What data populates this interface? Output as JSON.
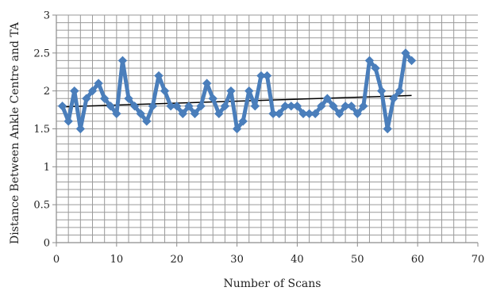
{
  "colors": {
    "series": "#4a7ebb",
    "trendline": "#000000",
    "grid": "#9a9a9a",
    "axis": "#8c8c8c"
  },
  "chart_data": {
    "type": "line",
    "title": "",
    "xlabel": "Number of Scans",
    "ylabel": "Distance Between Ankle Centre and TA",
    "xlim": [
      0,
      70
    ],
    "ylim": [
      0,
      3
    ],
    "x_major_ticks": [
      0,
      10,
      20,
      30,
      40,
      50,
      60,
      70
    ],
    "x_tick_labels": [
      "0",
      "10",
      "20",
      "30",
      "40",
      "50",
      "60",
      "70"
    ],
    "y_major_ticks": [
      0,
      0.5,
      1,
      1.5,
      2,
      2.5,
      3
    ],
    "y_tick_labels": [
      "0",
      "0.5",
      "1",
      "1.5",
      "2",
      "2.5",
      "3"
    ],
    "grid": true,
    "legend": "none",
    "series": [
      {
        "marker": "diamond",
        "x": [
          1,
          2,
          3,
          4,
          5,
          6,
          7,
          8,
          9,
          10,
          11,
          12,
          13,
          14,
          15,
          16,
          17,
          18,
          19,
          20,
          21,
          22,
          23,
          24,
          25,
          26,
          27,
          28,
          29,
          30,
          31,
          32,
          33,
          34,
          35,
          36,
          37,
          38,
          39,
          40,
          41,
          42,
          43,
          44,
          45,
          46,
          47,
          48,
          49,
          50,
          51,
          52,
          53,
          54,
          55,
          56,
          57,
          58,
          59
        ],
        "y": [
          1.8,
          1.6,
          2.0,
          1.5,
          1.9,
          2.0,
          2.1,
          1.9,
          1.8,
          1.7,
          2.4,
          1.9,
          1.8,
          1.7,
          1.6,
          1.8,
          2.2,
          2.0,
          1.8,
          1.8,
          1.7,
          1.8,
          1.7,
          1.8,
          2.1,
          1.9,
          1.7,
          1.8,
          2.0,
          1.5,
          1.6,
          2.0,
          1.8,
          2.2,
          2.2,
          1.7,
          1.7,
          1.8,
          1.8,
          1.8,
          1.7,
          1.7,
          1.7,
          1.8,
          1.9,
          1.8,
          1.7,
          1.8,
          1.8,
          1.7,
          1.8,
          2.4,
          2.3,
          2.0,
          1.5,
          1.9,
          2.0,
          2.5,
          2.4
        ]
      }
    ],
    "trendline": {
      "type": "linear",
      "x": [
        1,
        59
      ],
      "y": [
        1.79,
        1.94
      ]
    }
  }
}
